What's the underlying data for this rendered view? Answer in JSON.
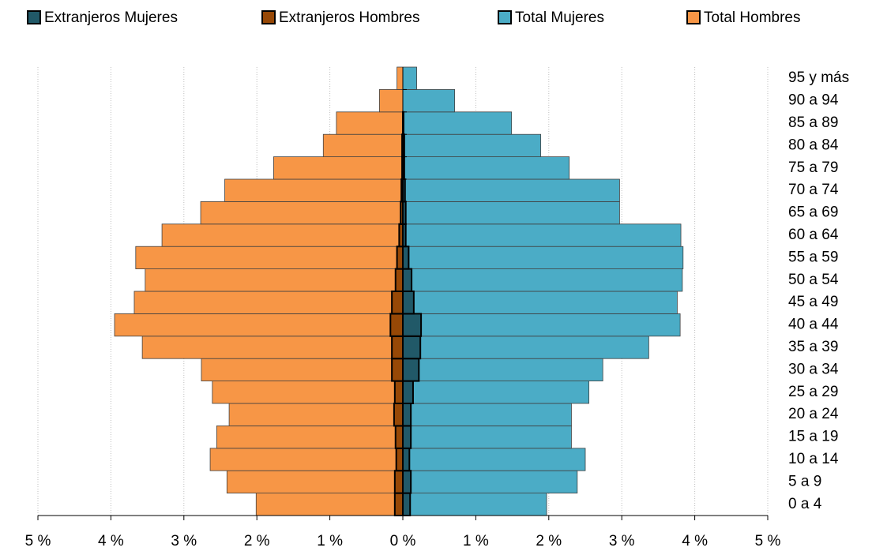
{
  "chart_data": {
    "type": "pyramid",
    "categories": [
      "0 a 4",
      "5 a 9",
      "10 a 14",
      "15 a 19",
      "20 a 24",
      "25 a 29",
      "30 a 34",
      "35 a 39",
      "40 a 44",
      "45 a 49",
      "50 a 54",
      "55 a 59",
      "60 a 64",
      "65 a 69",
      "70 a 74",
      "75 a 79",
      "80 a 84",
      "85 a 89",
      "90 a 94",
      "95 y más"
    ],
    "series": [
      {
        "name": "Total Hombres",
        "color": "#F79646",
        "values": [
          -2.01,
          -2.41,
          -2.64,
          -2.55,
          -2.38,
          -2.61,
          -2.76,
          -3.57,
          -3.95,
          -3.68,
          -3.53,
          -3.66,
          -3.3,
          -2.77,
          -2.44,
          -1.77,
          -1.09,
          -0.91,
          -0.32,
          -0.08
        ]
      },
      {
        "name": "Total Mujeres",
        "color": "#4BACC6",
        "values": [
          1.97,
          2.39,
          2.5,
          2.31,
          2.31,
          2.55,
          2.74,
          3.37,
          3.8,
          3.76,
          3.83,
          3.84,
          3.81,
          2.97,
          2.97,
          2.28,
          1.89,
          1.49,
          0.71,
          0.19
        ]
      },
      {
        "name": "Extranjeros Mujeres",
        "color": "#215968",
        "values": [
          0.1,
          0.11,
          0.09,
          0.11,
          0.11,
          0.14,
          0.22,
          0.24,
          0.25,
          0.15,
          0.12,
          0.08,
          0.04,
          0.04,
          0.03,
          0.02,
          0.02,
          0.01,
          0,
          0
        ]
      },
      {
        "name": "Extranjeros Hombres",
        "color": "#974806",
        "values": [
          -0.11,
          -0.11,
          -0.09,
          -0.1,
          -0.12,
          -0.11,
          -0.15,
          -0.15,
          -0.17,
          -0.15,
          -0.1,
          -0.08,
          -0.05,
          -0.03,
          -0.02,
          -0.01,
          -0.01,
          0,
          0,
          0
        ]
      }
    ],
    "legend_order": [
      2,
      3,
      1,
      0
    ],
    "xlim": [
      -5,
      5
    ],
    "xticks": [
      {
        "value": -5,
        "label": "5 %"
      },
      {
        "value": -4,
        "label": "4 %"
      },
      {
        "value": -3,
        "label": "3 %"
      },
      {
        "value": -2,
        "label": "2 %"
      },
      {
        "value": -1,
        "label": "1 %"
      },
      {
        "value": 0,
        "label": "0 %"
      },
      {
        "value": 1,
        "label": "1 %"
      },
      {
        "value": 2,
        "label": "2 %"
      },
      {
        "value": 3,
        "label": "3 %"
      },
      {
        "value": 4,
        "label": "4 %"
      },
      {
        "value": 5,
        "label": "5 %"
      }
    ],
    "grid": true
  }
}
